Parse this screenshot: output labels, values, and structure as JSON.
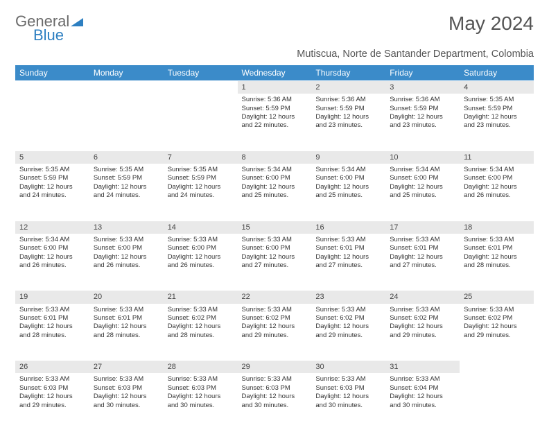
{
  "brand": {
    "part1": "General",
    "part2": "Blue"
  },
  "title": "May 2024",
  "location": "Mutiscua, Norte de Santander Department, Colombia",
  "weekdays": [
    "Sunday",
    "Monday",
    "Tuesday",
    "Wednesday",
    "Thursday",
    "Friday",
    "Saturday"
  ],
  "weeks": [
    {
      "nums": [
        "",
        "",
        "",
        "1",
        "2",
        "3",
        "4"
      ],
      "cells": [
        {
          "sunrise": "",
          "sunset": "",
          "daylight": ""
        },
        {
          "sunrise": "",
          "sunset": "",
          "daylight": ""
        },
        {
          "sunrise": "",
          "sunset": "",
          "daylight": ""
        },
        {
          "sunrise": "Sunrise: 5:36 AM",
          "sunset": "Sunset: 5:59 PM",
          "daylight": "Daylight: 12 hours and 22 minutes."
        },
        {
          "sunrise": "Sunrise: 5:36 AM",
          "sunset": "Sunset: 5:59 PM",
          "daylight": "Daylight: 12 hours and 23 minutes."
        },
        {
          "sunrise": "Sunrise: 5:36 AM",
          "sunset": "Sunset: 5:59 PM",
          "daylight": "Daylight: 12 hours and 23 minutes."
        },
        {
          "sunrise": "Sunrise: 5:35 AM",
          "sunset": "Sunset: 5:59 PM",
          "daylight": "Daylight: 12 hours and 23 minutes."
        }
      ]
    },
    {
      "nums": [
        "5",
        "6",
        "7",
        "8",
        "9",
        "10",
        "11"
      ],
      "cells": [
        {
          "sunrise": "Sunrise: 5:35 AM",
          "sunset": "Sunset: 5:59 PM",
          "daylight": "Daylight: 12 hours and 24 minutes."
        },
        {
          "sunrise": "Sunrise: 5:35 AM",
          "sunset": "Sunset: 5:59 PM",
          "daylight": "Daylight: 12 hours and 24 minutes."
        },
        {
          "sunrise": "Sunrise: 5:35 AM",
          "sunset": "Sunset: 5:59 PM",
          "daylight": "Daylight: 12 hours and 24 minutes."
        },
        {
          "sunrise": "Sunrise: 5:34 AM",
          "sunset": "Sunset: 6:00 PM",
          "daylight": "Daylight: 12 hours and 25 minutes."
        },
        {
          "sunrise": "Sunrise: 5:34 AM",
          "sunset": "Sunset: 6:00 PM",
          "daylight": "Daylight: 12 hours and 25 minutes."
        },
        {
          "sunrise": "Sunrise: 5:34 AM",
          "sunset": "Sunset: 6:00 PM",
          "daylight": "Daylight: 12 hours and 25 minutes."
        },
        {
          "sunrise": "Sunrise: 5:34 AM",
          "sunset": "Sunset: 6:00 PM",
          "daylight": "Daylight: 12 hours and 26 minutes."
        }
      ]
    },
    {
      "nums": [
        "12",
        "13",
        "14",
        "15",
        "16",
        "17",
        "18"
      ],
      "cells": [
        {
          "sunrise": "Sunrise: 5:34 AM",
          "sunset": "Sunset: 6:00 PM",
          "daylight": "Daylight: 12 hours and 26 minutes."
        },
        {
          "sunrise": "Sunrise: 5:33 AM",
          "sunset": "Sunset: 6:00 PM",
          "daylight": "Daylight: 12 hours and 26 minutes."
        },
        {
          "sunrise": "Sunrise: 5:33 AM",
          "sunset": "Sunset: 6:00 PM",
          "daylight": "Daylight: 12 hours and 26 minutes."
        },
        {
          "sunrise": "Sunrise: 5:33 AM",
          "sunset": "Sunset: 6:00 PM",
          "daylight": "Daylight: 12 hours and 27 minutes."
        },
        {
          "sunrise": "Sunrise: 5:33 AM",
          "sunset": "Sunset: 6:01 PM",
          "daylight": "Daylight: 12 hours and 27 minutes."
        },
        {
          "sunrise": "Sunrise: 5:33 AM",
          "sunset": "Sunset: 6:01 PM",
          "daylight": "Daylight: 12 hours and 27 minutes."
        },
        {
          "sunrise": "Sunrise: 5:33 AM",
          "sunset": "Sunset: 6:01 PM",
          "daylight": "Daylight: 12 hours and 28 minutes."
        }
      ]
    },
    {
      "nums": [
        "19",
        "20",
        "21",
        "22",
        "23",
        "24",
        "25"
      ],
      "cells": [
        {
          "sunrise": "Sunrise: 5:33 AM",
          "sunset": "Sunset: 6:01 PM",
          "daylight": "Daylight: 12 hours and 28 minutes."
        },
        {
          "sunrise": "Sunrise: 5:33 AM",
          "sunset": "Sunset: 6:01 PM",
          "daylight": "Daylight: 12 hours and 28 minutes."
        },
        {
          "sunrise": "Sunrise: 5:33 AM",
          "sunset": "Sunset: 6:02 PM",
          "daylight": "Daylight: 12 hours and 28 minutes."
        },
        {
          "sunrise": "Sunrise: 5:33 AM",
          "sunset": "Sunset: 6:02 PM",
          "daylight": "Daylight: 12 hours and 29 minutes."
        },
        {
          "sunrise": "Sunrise: 5:33 AM",
          "sunset": "Sunset: 6:02 PM",
          "daylight": "Daylight: 12 hours and 29 minutes."
        },
        {
          "sunrise": "Sunrise: 5:33 AM",
          "sunset": "Sunset: 6:02 PM",
          "daylight": "Daylight: 12 hours and 29 minutes."
        },
        {
          "sunrise": "Sunrise: 5:33 AM",
          "sunset": "Sunset: 6:02 PM",
          "daylight": "Daylight: 12 hours and 29 minutes."
        }
      ]
    },
    {
      "nums": [
        "26",
        "27",
        "28",
        "29",
        "30",
        "31",
        ""
      ],
      "cells": [
        {
          "sunrise": "Sunrise: 5:33 AM",
          "sunset": "Sunset: 6:03 PM",
          "daylight": "Daylight: 12 hours and 29 minutes."
        },
        {
          "sunrise": "Sunrise: 5:33 AM",
          "sunset": "Sunset: 6:03 PM",
          "daylight": "Daylight: 12 hours and 30 minutes."
        },
        {
          "sunrise": "Sunrise: 5:33 AM",
          "sunset": "Sunset: 6:03 PM",
          "daylight": "Daylight: 12 hours and 30 minutes."
        },
        {
          "sunrise": "Sunrise: 5:33 AM",
          "sunset": "Sunset: 6:03 PM",
          "daylight": "Daylight: 12 hours and 30 minutes."
        },
        {
          "sunrise": "Sunrise: 5:33 AM",
          "sunset": "Sunset: 6:03 PM",
          "daylight": "Daylight: 12 hours and 30 minutes."
        },
        {
          "sunrise": "Sunrise: 5:33 AM",
          "sunset": "Sunset: 6:04 PM",
          "daylight": "Daylight: 12 hours and 30 minutes."
        },
        {
          "sunrise": "",
          "sunset": "",
          "daylight": ""
        }
      ]
    }
  ],
  "colors": {
    "header_bg": "#3b8bc9",
    "header_text": "#ffffff",
    "daynum_bg": "#e9e9e9",
    "text": "#333333"
  }
}
